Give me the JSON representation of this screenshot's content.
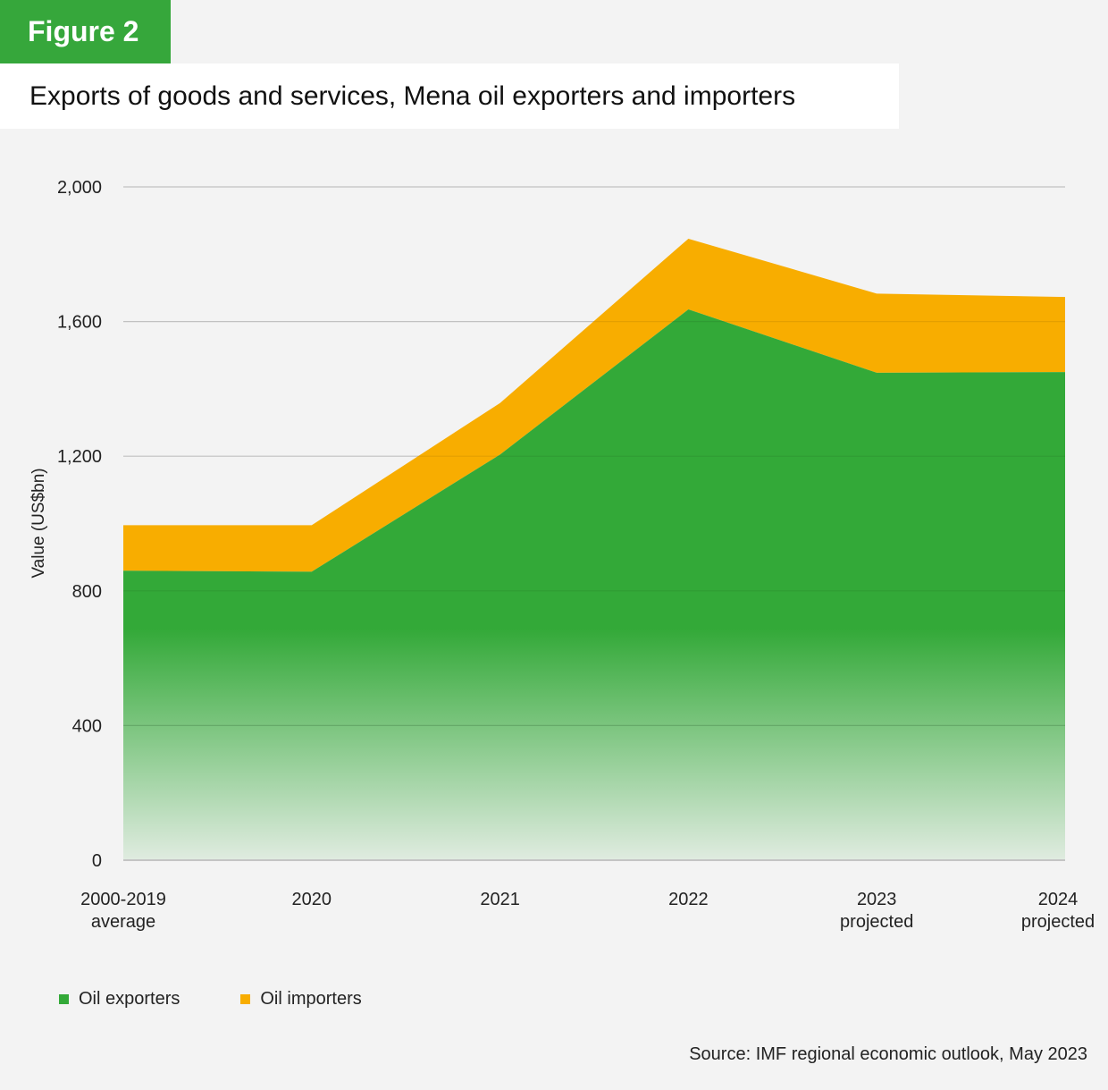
{
  "figure_label": "Figure 2",
  "title": "Exports of goods and services, Mena oil exporters and importers",
  "source": "Source: IMF regional economic outlook, May 2023",
  "colors": {
    "oil_exporters": "#33a938",
    "oil_importers": "#f8ad00",
    "figure_tag": "#36a73b",
    "background": "#f3f3f3"
  },
  "chart_data": {
    "type": "area",
    "stacked": true,
    "categories": [
      [
        "2000-2019",
        "average"
      ],
      [
        "2020"
      ],
      [
        "2021"
      ],
      [
        "2022"
      ],
      [
        "2023",
        "projected"
      ],
      [
        "2024",
        "projected"
      ]
    ],
    "series": [
      {
        "name": "Oil exporters",
        "values": [
          860,
          857,
          1205,
          1636,
          1448,
          1450
        ]
      },
      {
        "name": "Oil importers",
        "values": [
          135,
          138,
          153,
          210,
          235,
          223
        ]
      }
    ],
    "ylabel": "Value (US$bn)",
    "xlabel": "",
    "ylim": [
      0,
      2000
    ],
    "yticks": [
      0,
      400,
      800,
      1200,
      1600,
      2000
    ],
    "ytick_labels": [
      "0",
      "400",
      "800",
      "1,200",
      "1,600",
      "2,000"
    ],
    "grid": true,
    "legend": "bottom-left"
  }
}
